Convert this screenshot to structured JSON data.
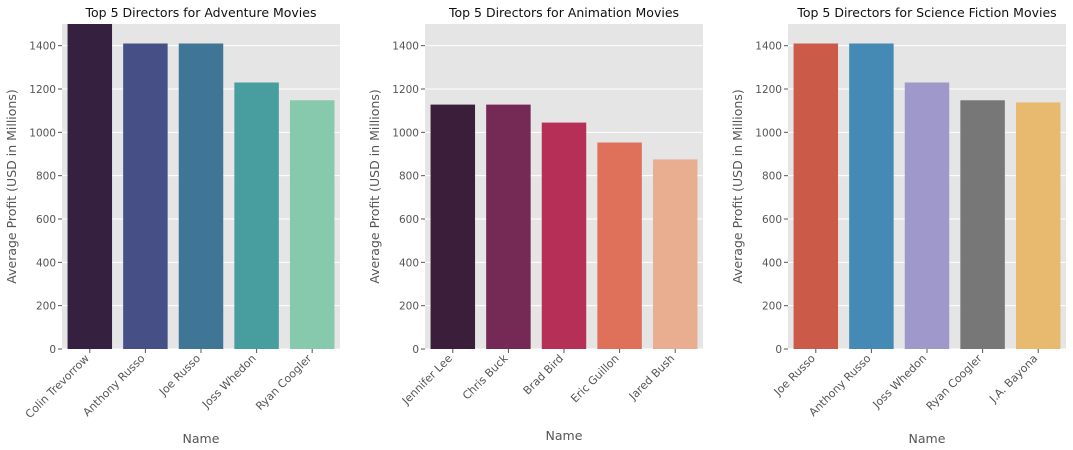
{
  "chart_data": [
    {
      "type": "bar",
      "title": "Top 5 Directors for Adventure Movies",
      "xlabel": "Name",
      "ylabel": "Average Profit (USD in Millions)",
      "ylim": [
        0,
        1500
      ],
      "yticks": [
        "0",
        "200",
        "400",
        "600",
        "800",
        "1000",
        "1200",
        "1400"
      ],
      "grid": true,
      "categories": [
        "Colin Trevorrow",
        "Anthony Russo",
        "Joe Russo",
        "Joss Whedon",
        "Ryan Coogler"
      ],
      "values": [
        1500,
        1410,
        1410,
        1230,
        1148
      ],
      "colors": [
        "#35213f",
        "#474f87",
        "#3f7595",
        "#489d9e",
        "#86c9ad"
      ]
    },
    {
      "type": "bar",
      "title": "Top 5 Directors for Animation Movies",
      "xlabel": "Name",
      "ylabel": "Average Profit (USD in Millions)",
      "ylim": [
        0,
        1500
      ],
      "yticks": [
        "0",
        "200",
        "400",
        "600",
        "800",
        "1000",
        "1200",
        "1400"
      ],
      "grid": true,
      "categories": [
        "Jennifer Lee",
        "Chris Buck",
        "Brad Bird",
        "Eric Guillon",
        "Jared Bush"
      ],
      "values": [
        1128,
        1128,
        1045,
        953,
        875
      ],
      "colors": [
        "#3a1e3a",
        "#752a55",
        "#b52f56",
        "#df705a",
        "#e9ad90"
      ]
    },
    {
      "type": "bar",
      "title": "Top 5 Directors for Science Fiction Movies",
      "xlabel": "Name",
      "ylabel": "Average Profit (USD in Millions)",
      "ylim": [
        0,
        1500
      ],
      "yticks": [
        "0",
        "200",
        "400",
        "600",
        "800",
        "1000",
        "1200",
        "1400"
      ],
      "grid": true,
      "categories": [
        "Joe Russo",
        "Anthony Russo",
        "Joss Whedon",
        "Ryan Coogler",
        "J.A. Bayona"
      ],
      "values": [
        1410,
        1410,
        1230,
        1148,
        1138
      ],
      "colors": [
        "#cc5a48",
        "#4589b5",
        "#9f98cb",
        "#777777",
        "#e7ba6f"
      ]
    }
  ]
}
